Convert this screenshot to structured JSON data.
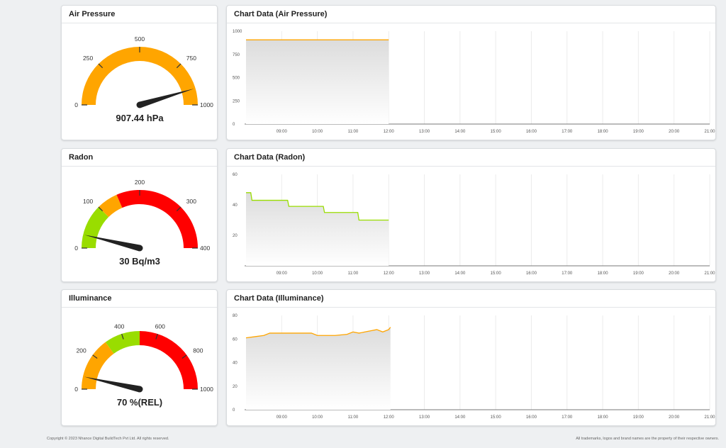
{
  "gauges": [
    {
      "title": "Air Pressure",
      "value": 907.44,
      "max": 1000,
      "reading": "907.44 hPa",
      "ticks": [
        {
          "value": 0,
          "label": "0"
        },
        {
          "value": 250,
          "label": "250"
        },
        {
          "value": 500,
          "label": "500"
        },
        {
          "value": 750,
          "label": "750"
        },
        {
          "value": 1000,
          "label": "1000"
        }
      ],
      "bands": [
        {
          "from": 0,
          "to": 1000,
          "color": "#ffa500"
        }
      ]
    },
    {
      "title": "Radon",
      "value": 30,
      "max": 400,
      "reading": "30 Bq/m3",
      "ticks": [
        {
          "value": 0,
          "label": "0"
        },
        {
          "value": 100,
          "label": "100"
        },
        {
          "value": 200,
          "label": "200"
        },
        {
          "value": 300,
          "label": "300"
        },
        {
          "value": 400,
          "label": "400"
        }
      ],
      "bands": [
        {
          "from": 0,
          "to": 100,
          "color": "#99dd00"
        },
        {
          "from": 100,
          "to": 148,
          "color": "#ffa500"
        },
        {
          "from": 148,
          "to": 400,
          "color": "#ff0000"
        }
      ]
    },
    {
      "title": "Illuminance",
      "value": 70,
      "max": 1000,
      "reading": "70 %(REL)",
      "ticks": [
        {
          "value": 0,
          "label": "0"
        },
        {
          "value": 200,
          "label": "200"
        },
        {
          "value": 400,
          "label": "400"
        },
        {
          "value": 600,
          "label": "600"
        },
        {
          "value": 800,
          "label": "800"
        },
        {
          "value": 1000,
          "label": "1000"
        }
      ],
      "bands": [
        {
          "from": 0,
          "to": 300,
          "color": "#ffa500"
        },
        {
          "from": 300,
          "to": 500,
          "color": "#99dd00"
        },
        {
          "from": 500,
          "to": 1000,
          "color": "#ff0000"
        }
      ]
    }
  ],
  "chart_data": [
    {
      "type": "area",
      "title": "Chart Data (Air Pressure)",
      "x_categories": [
        "09:00",
        "10:00",
        "11:00",
        "12:00",
        "13:00",
        "14:00",
        "15:00",
        "16:00",
        "17:00",
        "18:00",
        "19:00",
        "20:00",
        "21:00"
      ],
      "x_range": [
        "08:00",
        "21:00"
      ],
      "ylim": [
        0,
        1000
      ],
      "y_ticks": [
        0,
        250,
        500,
        750,
        1000
      ],
      "grid": true,
      "color": "#ffa500",
      "series": [
        {
          "x": [
            "08:00",
            "12:00"
          ],
          "y": [
            907,
            907
          ]
        }
      ]
    },
    {
      "type": "area",
      "title": "Chart Data (Radon)",
      "x_categories": [
        "09:00",
        "10:00",
        "11:00",
        "12:00",
        "13:00",
        "14:00",
        "15:00",
        "16:00",
        "17:00",
        "18:00",
        "19:00",
        "20:00",
        "21:00"
      ],
      "x_range": [
        "08:00",
        "21:00"
      ],
      "ylim": [
        0,
        60
      ],
      "y_ticks": [
        20,
        40,
        60
      ],
      "grid": true,
      "color": "#99dd00",
      "series": [
        {
          "x": [
            "08:00",
            "08:08",
            "08:10",
            "09:10",
            "09:12",
            "10:10",
            "10:12",
            "11:08",
            "11:10",
            "12:00"
          ],
          "y": [
            48,
            48,
            43,
            43,
            39,
            39,
            35,
            35,
            30,
            30
          ]
        }
      ]
    },
    {
      "type": "area",
      "title": "Chart Data (Illuminance)",
      "x_categories": [
        "09:00",
        "10:00",
        "11:00",
        "12:00",
        "13:00",
        "14:00",
        "15:00",
        "16:00",
        "17:00",
        "18:00",
        "19:00",
        "20:00",
        "21:00"
      ],
      "x_range": [
        "08:00",
        "21:00"
      ],
      "ylim": [
        0,
        80
      ],
      "y_ticks": [
        0,
        20,
        40,
        60,
        80
      ],
      "grid": true,
      "color": "#ffa500",
      "series": [
        {
          "x": [
            "08:00",
            "08:15",
            "08:30",
            "08:40",
            "09:00",
            "09:30",
            "09:50",
            "10:00",
            "10:30",
            "10:50",
            "11:00",
            "11:10",
            "11:20",
            "11:30",
            "11:40",
            "11:50",
            "12:00",
            "12:03"
          ],
          "y": [
            61,
            62,
            63,
            65,
            65,
            65,
            65,
            63,
            63,
            64,
            66,
            65,
            66,
            67,
            68,
            66,
            68,
            70
          ]
        }
      ]
    }
  ],
  "footer": {
    "copyright": "Copyright © 2023 Nhance Digital BuildTech Pvt Ltd. All rights reserved.",
    "trademarks": "All trademarks, logos and brand names are the property of their respective owners."
  }
}
